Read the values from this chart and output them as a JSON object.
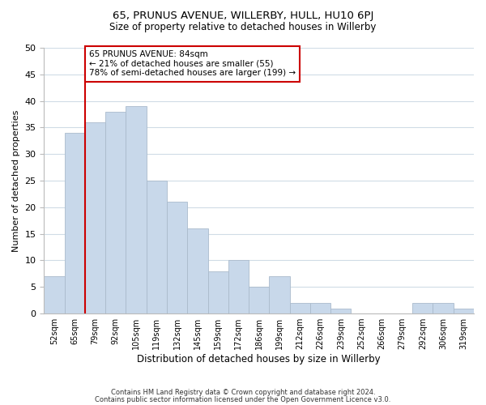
{
  "title": "65, PRUNUS AVENUE, WILLERBY, HULL, HU10 6PJ",
  "subtitle": "Size of property relative to detached houses in Willerby",
  "xlabel": "Distribution of detached houses by size in Willerby",
  "ylabel": "Number of detached properties",
  "footer_lines": [
    "Contains HM Land Registry data © Crown copyright and database right 2024.",
    "Contains public sector information licensed under the Open Government Licence v3.0."
  ],
  "bin_labels": [
    "52sqm",
    "65sqm",
    "79sqm",
    "92sqm",
    "105sqm",
    "119sqm",
    "132sqm",
    "145sqm",
    "159sqm",
    "172sqm",
    "186sqm",
    "199sqm",
    "212sqm",
    "226sqm",
    "239sqm",
    "252sqm",
    "266sqm",
    "279sqm",
    "292sqm",
    "306sqm",
    "319sqm"
  ],
  "bar_heights": [
    7,
    34,
    36,
    38,
    39,
    25,
    21,
    16,
    8,
    10,
    5,
    7,
    2,
    2,
    1,
    0,
    0,
    0,
    2,
    2,
    1
  ],
  "bar_color": "#c8d8ea",
  "bar_edge_color": "#aabbcc",
  "vline_x_index": 2,
  "vline_color": "#cc0000",
  "annotation_text": "65 PRUNUS AVENUE: 84sqm\n← 21% of detached houses are smaller (55)\n78% of semi-detached houses are larger (199) →",
  "annotation_box_color": "#ffffff",
  "annotation_box_edge": "#cc0000",
  "ylim": [
    0,
    50
  ],
  "yticks": [
    0,
    5,
    10,
    15,
    20,
    25,
    30,
    35,
    40,
    45,
    50
  ],
  "background_color": "#ffffff",
  "grid_color": "#d0dce6"
}
